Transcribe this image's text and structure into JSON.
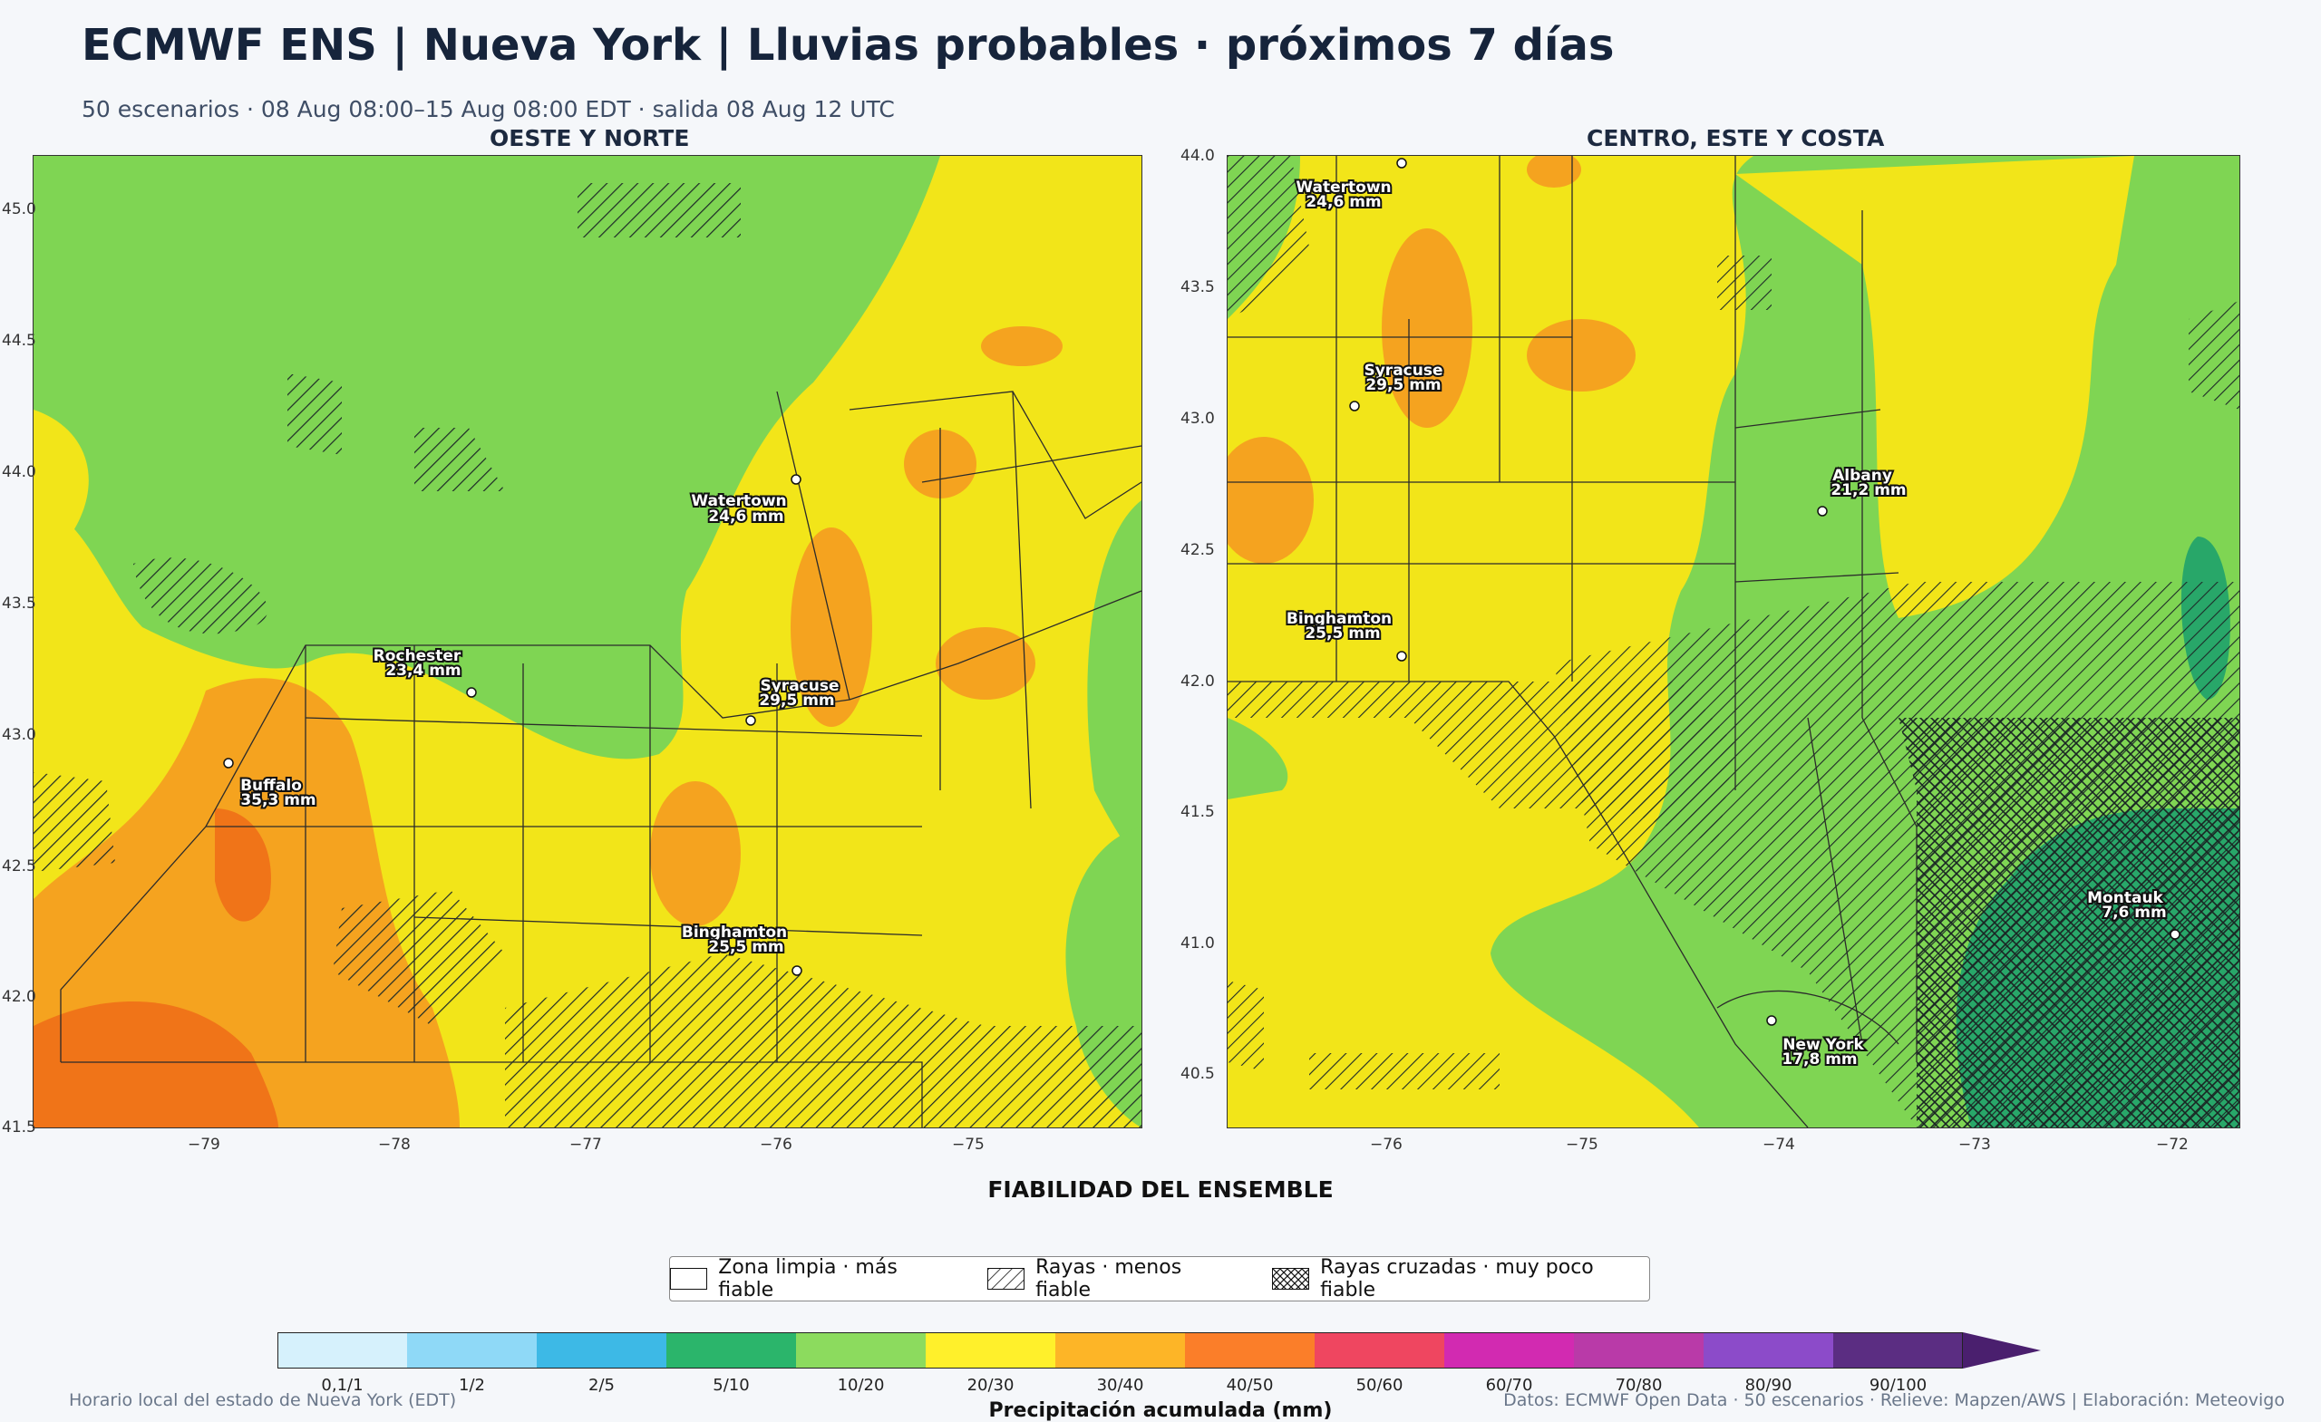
{
  "header": {
    "title": "ECMWF ENS | Nueva York | Lluvias probables · próximos 7 días",
    "subtitle": "50 escenarios · 08 Aug 08:00–15 Aug 08:00 EDT · salida 08 Aug 12 UTC"
  },
  "panels": {
    "west": {
      "title": "OESTE Y NORTE",
      "x_ticks": [
        "−79",
        "−78",
        "−77",
        "−76",
        "−75"
      ],
      "y_ticks": [
        "45.0",
        "44.5",
        "44.0",
        "43.5",
        "43.0",
        "42.5",
        "42.0",
        "41.5"
      ],
      "cities": [
        {
          "name": "Watertown",
          "value": "24,6 mm"
        },
        {
          "name": "Rochester",
          "value": "23,4 mm"
        },
        {
          "name": "Syracuse",
          "value": "29,5 mm"
        },
        {
          "name": "Buffalo",
          "value": "35,3 mm"
        },
        {
          "name": "Binghamton",
          "value": "25,5 mm"
        }
      ]
    },
    "east": {
      "title": "CENTRO, ESTE Y COSTA",
      "x_ticks": [
        "−76",
        "−75",
        "−74",
        "−73",
        "−72"
      ],
      "y_ticks": [
        "44.0",
        "43.5",
        "43.0",
        "42.5",
        "42.0",
        "41.5",
        "41.0",
        "40.5"
      ],
      "cities": [
        {
          "name": "Watertown",
          "value": "24,6 mm"
        },
        {
          "name": "Syracuse",
          "value": "29,5 mm"
        },
        {
          "name": "Albany",
          "value": "21,2 mm"
        },
        {
          "name": "Binghamton",
          "value": "25,5 mm"
        },
        {
          "name": "Montauk",
          "value": "7,6 mm"
        },
        {
          "name": "New York",
          "value": "17,8 mm"
        }
      ]
    }
  },
  "reliability": {
    "title": "FIABILIDAD DEL ENSEMBLE",
    "items": [
      {
        "label": "Zona limpia · más fiable",
        "pattern": "none"
      },
      {
        "label": "Rayas · menos fiable",
        "pattern": "hatch"
      },
      {
        "label": "Rayas cruzadas · muy poco fiable",
        "pattern": "crosshatch"
      }
    ]
  },
  "colorbar": {
    "title": "Precipitación acumulada (mm)",
    "bins": [
      {
        "label": "0,1/1",
        "color": "#d6f1fc"
      },
      {
        "label": "1/2",
        "color": "#8fd9f7"
      },
      {
        "label": "2/5",
        "color": "#3db9e6"
      },
      {
        "label": "5/10",
        "color": "#2bb56b"
      },
      {
        "label": "10/20",
        "color": "#8cdb5e"
      },
      {
        "label": "20/30",
        "color": "#fff02b"
      },
      {
        "label": "30/40",
        "color": "#fdb527"
      },
      {
        "label": "40/50",
        "color": "#fb7e29"
      },
      {
        "label": "50/60",
        "color": "#ef4660"
      },
      {
        "label": "60/70",
        "color": "#d22ab1"
      },
      {
        "label": "70/80",
        "color": "#b93aa8"
      },
      {
        "label": "80/90",
        "color": "#8c4bc9"
      },
      {
        "label": "90/100",
        "color": "#5b2d82"
      }
    ],
    "extend_color": "#4a1f6e"
  },
  "footer": {
    "left": "Horario local del estado de Nueva York (EDT)",
    "right": "Datos: ECMWF Open Data · 50 escenarios · Relieve: Mapzen/AWS | Elaboración: Meteovigo"
  }
}
